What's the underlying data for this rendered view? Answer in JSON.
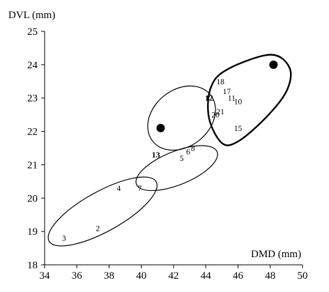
{
  "chart_data": {
    "type": "scatter",
    "title": "",
    "xlabel": "DMD (mm)",
    "ylabel": "DVL (mm)",
    "xlim": [
      34,
      50
    ],
    "ylim": [
      18,
      25
    ],
    "xticks": [
      "34",
      "36",
      "38",
      "40",
      "42",
      "44",
      "46",
      "48",
      "50"
    ],
    "yticks": [
      "18",
      "19",
      "20",
      "21",
      "22",
      "23",
      "24",
      "25"
    ],
    "grid": false,
    "legend": "none",
    "points": [
      {
        "label": "2",
        "x": 37.3,
        "y": 19.1
      },
      {
        "label": "3",
        "x": 35.2,
        "y": 18.8
      },
      {
        "label": "4",
        "x": 38.6,
        "y": 20.3
      },
      {
        "label": "5",
        "x": 42.5,
        "y": 21.2
      },
      {
        "label": "6",
        "x": 42.9,
        "y": 21.4
      },
      {
        "label": "7",
        "x": 39.9,
        "y": 20.3
      },
      {
        "label": "8",
        "x": 43.2,
        "y": 21.5
      },
      {
        "label": "10",
        "x": 46.0,
        "y": 22.9
      },
      {
        "label": "11",
        "x": 45.6,
        "y": 23.0
      },
      {
        "label": "12",
        "x": 44.2,
        "y": 23.0,
        "bold": true
      },
      {
        "label": "13",
        "x": 40.9,
        "y": 21.3,
        "bold": true
      },
      {
        "label": "15",
        "x": 46.0,
        "y": 22.1
      },
      {
        "label": "17",
        "x": 45.3,
        "y": 23.2
      },
      {
        "label": "18",
        "x": 44.9,
        "y": 23.5
      },
      {
        "label": "20",
        "x": 44.6,
        "y": 22.5
      },
      {
        "label": "21",
        "x": 44.9,
        "y": 22.6
      }
    ],
    "reference_points": [
      {
        "x": 41.2,
        "y": 22.1
      },
      {
        "x": 48.2,
        "y": 24.0
      }
    ],
    "groups": [
      {
        "id": "g1",
        "cx": 37.6,
        "cy": 19.6,
        "rx": 3.8,
        "ry": 0.6,
        "angle": 29,
        "weight": "thin"
      },
      {
        "id": "g2",
        "cx": 42.2,
        "cy": 20.9,
        "rx": 2.7,
        "ry": 0.5,
        "angle": 22,
        "weight": "thin"
      },
      {
        "id": "g3",
        "cx": 42.5,
        "cy": 22.4,
        "rx": 2.3,
        "ry": 0.85,
        "angle": 39,
        "weight": "thin"
      },
      {
        "id": "g4",
        "outline": [
          [
            44.2,
            22.4
          ],
          [
            44.3,
            23.3
          ],
          [
            45.3,
            23.85
          ],
          [
            48.0,
            24.3
          ],
          [
            49.2,
            23.9
          ],
          [
            49.0,
            23.2
          ],
          [
            47.7,
            22.4
          ],
          [
            46.0,
            21.7
          ],
          [
            45.0,
            21.65
          ]
        ],
        "weight": "bold"
      }
    ]
  }
}
